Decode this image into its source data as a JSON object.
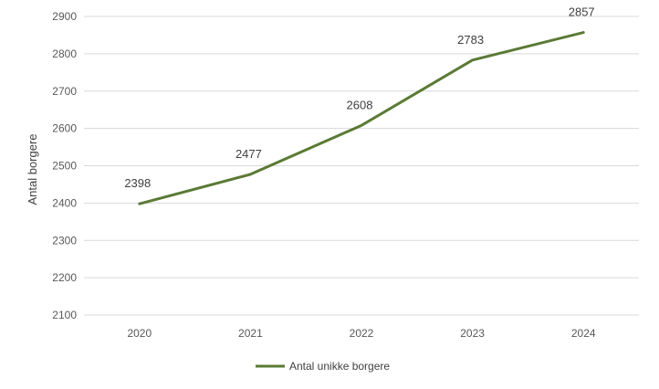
{
  "chart_data": {
    "type": "line",
    "title": "",
    "xlabel": "",
    "ylabel": "Antal borgere",
    "categories": [
      "2020",
      "2021",
      "2022",
      "2023",
      "2024"
    ],
    "yticks": [
      2100,
      2200,
      2300,
      2400,
      2500,
      2600,
      2700,
      2800,
      2900
    ],
    "ylim": [
      2100,
      2900
    ],
    "grid": true,
    "legend_position": "bottom",
    "series": [
      {
        "name": "Antal unikke borgere",
        "values": [
          2398,
          2477,
          2608,
          2783,
          2857
        ],
        "color": "#5a7a34"
      }
    ]
  }
}
